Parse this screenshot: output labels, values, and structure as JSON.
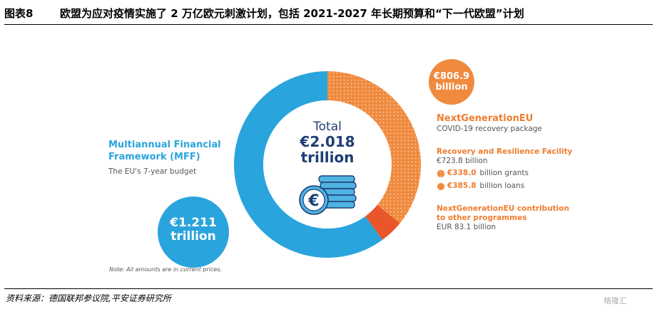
{
  "header": {
    "figure_label": "图表8",
    "title": "欧盟为应对疫情实施了 2 万亿欧元刺激计划，包括 2021-2027 年长期预算和“下一代欧盟”计划"
  },
  "footer": {
    "source": "资料来源：德国联邦参议院,平安证券研究所",
    "watermark": "格隆汇"
  },
  "colors": {
    "mff_blue": "#2aa4dd",
    "ngeu_orange": "#f08a3e",
    "other_red": "#e8562a",
    "navy": "#1e3e73"
  },
  "chart_data": {
    "type": "pie",
    "donut": true,
    "center": {
      "label": "Total",
      "value": "€2.018",
      "unit": "trillion"
    },
    "slices": [
      {
        "key": "mff",
        "value": 1211,
        "color": "#2aa4dd"
      },
      {
        "key": "rrf",
        "value": 723.8,
        "color": "#f08a3e",
        "pattern": "dotted"
      },
      {
        "key": "other",
        "value": 83.1,
        "color": "#e8562a"
      }
    ],
    "mff": {
      "title_line1": "Multiannual Financial",
      "title_line2": "Framework (MFF)",
      "subtitle": "The EU's 7-year budget",
      "bubble_value": "€1.211",
      "bubble_unit": "trillion"
    },
    "ngeu": {
      "bubble_value": "€806.9",
      "bubble_unit": "billion",
      "title": "NextGenerationEU",
      "subtitle": "COVID-19 recovery package",
      "rrf_title": "Recovery and Resilience Facility",
      "rrf_amount": "€723.8 billion",
      "grants_amount": "€338.0",
      "grants_text": "billion grants",
      "loans_amount": "€385.8",
      "loans_text": "billion loans",
      "contrib_title_line1": "NextGenerationEU contribution",
      "contrib_title_line2": "to other programmes",
      "contrib_amount": "EUR 83.1 billion"
    },
    "note": "Note: All amounts are in current prices."
  }
}
